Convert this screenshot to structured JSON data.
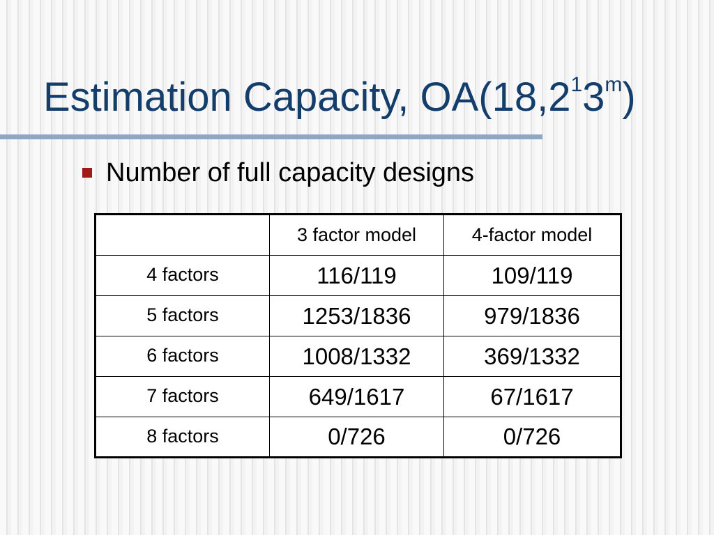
{
  "slide": {
    "title_main": "Estimation Capacity, OA(18,2",
    "title_sup1": "1",
    "title_mid": "3",
    "title_sup2": "m",
    "title_end": ")",
    "bullet": "Number of full capacity designs"
  },
  "table": {
    "headers": [
      "",
      "3 factor model",
      "4-factor model"
    ],
    "rows": [
      {
        "label": "4 factors",
        "v1": "116/119",
        "v2": "109/119"
      },
      {
        "label": "5 factors",
        "v1": "1253/1836",
        "v2": "979/1836"
      },
      {
        "label": "6 factors",
        "v1": "1008/1332",
        "v2": "369/1332"
      },
      {
        "label": "7 factors",
        "v1": "649/1617",
        "v2": "67/1617"
      },
      {
        "label": "8 factors",
        "v1": "0/726",
        "v2": "0/726"
      }
    ]
  },
  "colors": {
    "title": "#133d6b",
    "rule": "#8fa7c4",
    "bullet": "#a11a1a"
  }
}
